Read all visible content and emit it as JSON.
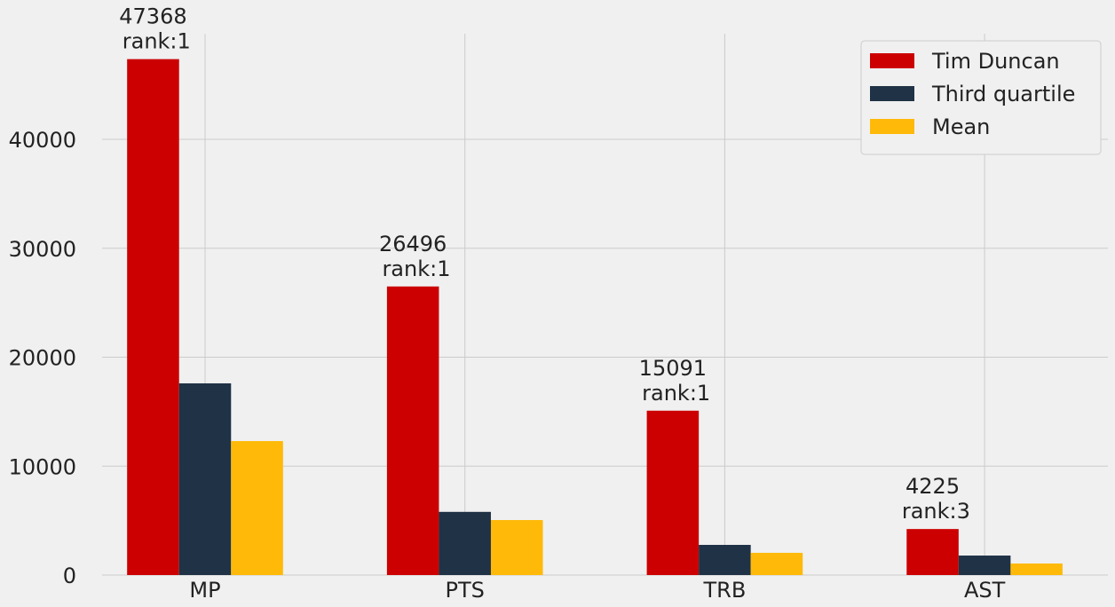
{
  "chart_data": {
    "type": "bar",
    "categories": [
      "MP",
      "PTS",
      "TRB",
      "AST"
    ],
    "series": [
      {
        "name": "Tim Duncan",
        "color": "#cc0000",
        "values": [
          47368,
          26496,
          15091,
          4225
        ],
        "value_labels": [
          "47368\n rank:1",
          "26496\n rank:1",
          "15091\n rank:1",
          "4225\n rank:3"
        ]
      },
      {
        "name": "Third quartile",
        "color": "#1f3246",
        "values": [
          17600,
          5800,
          2770,
          1790
        ]
      },
      {
        "name": "Mean",
        "color": "#ffb908",
        "values": [
          12300,
          5050,
          2040,
          1060
        ]
      }
    ],
    "ylim": [
      0,
      49700
    ],
    "yticks": [
      0,
      10000,
      20000,
      30000,
      40000
    ],
    "grid": true,
    "legend": "upper right"
  }
}
